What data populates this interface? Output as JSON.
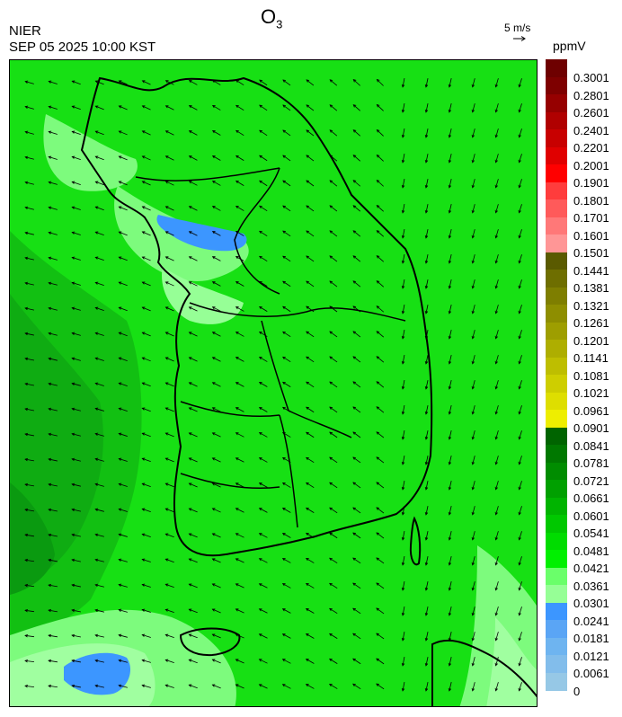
{
  "header": {
    "title_main": "O",
    "title_sub": "3",
    "org": "NIER",
    "timestamp": "SEP 05 2025 10:00 KST",
    "wind_ref": "5 m/s",
    "unit": "ppmV"
  },
  "colorbar": {
    "labels": [
      "0.3001",
      "0.2801",
      "0.2601",
      "0.2401",
      "0.2201",
      "0.2001",
      "0.1901",
      "0.1801",
      "0.1701",
      "0.1601",
      "0.1501",
      "0.1441",
      "0.1381",
      "0.1321",
      "0.1261",
      "0.1201",
      "0.1141",
      "0.1081",
      "0.1021",
      "0.0961",
      "0.0901",
      "0.0841",
      "0.0781",
      "0.0721",
      "0.0661",
      "0.0601",
      "0.0541",
      "0.0481",
      "0.0421",
      "0.0361",
      "0.0301",
      "0.0241",
      "0.0181",
      "0.0121",
      "0.0061",
      "0"
    ],
    "colors": [
      "#6e0000",
      "#7e0000",
      "#960000",
      "#b00000",
      "#c80000",
      "#e00000",
      "#ff0000",
      "#ff3c3c",
      "#ff5a5a",
      "#ff7878",
      "#ff9696",
      "#5a5a00",
      "#6e6e00",
      "#7e7e00",
      "#8e8e00",
      "#9e9e00",
      "#aeae00",
      "#bebe00",
      "#cece00",
      "#dede00",
      "#eeee00",
      "#006400",
      "#007800",
      "#008c00",
      "#00a000",
      "#00b400",
      "#00c800",
      "#00dc00",
      "#00f000",
      "#6aff6a",
      "#96ff96",
      "#3c96ff",
      "#5aa5f5",
      "#6eb4f0",
      "#82bdeb",
      "#96c8e6"
    ]
  },
  "map": {
    "background_color": "#17e014",
    "wind_direction": "northeasterly",
    "colors": {
      "dark_green": "#0a9a10",
      "mid_green": "#12c012",
      "light_green": "#7dfb7d",
      "pale_green": "#a0ffa0",
      "blue": "#3c96ff"
    }
  }
}
